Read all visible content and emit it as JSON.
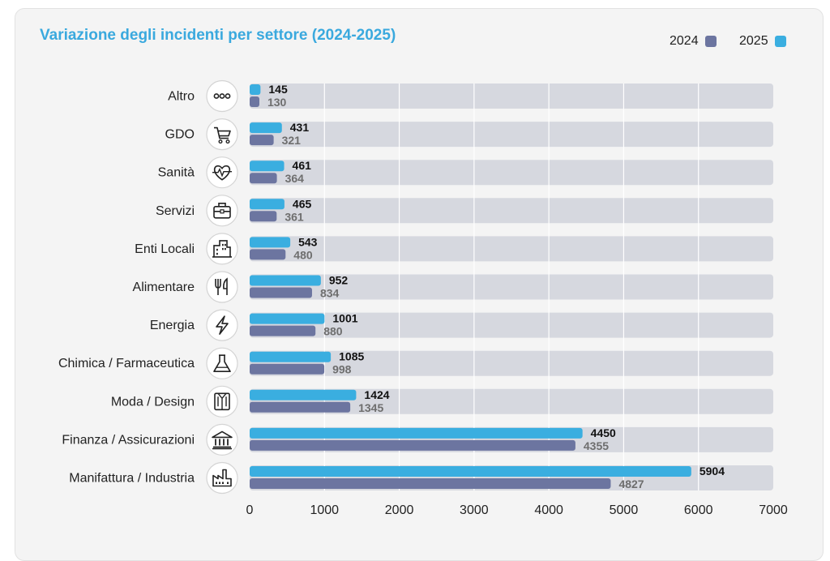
{
  "colors": {
    "y2025": "#3aaee0",
    "y2024": "#6c75a0",
    "track": "#d6d8df",
    "grid": "#ffffff",
    "value2025": "#111111",
    "value2024": "#6e6e6e",
    "title": "#3aa9de"
  },
  "chart_data": {
    "type": "bar",
    "orientation": "horizontal",
    "title": "Variazione degli incidenti per settore (2024-2025)",
    "legend_position": "top-right",
    "categories": [
      {
        "label": "Altro",
        "icon": "more-dots-icon"
      },
      {
        "label": "GDO",
        "icon": "shopping-cart-icon"
      },
      {
        "label": "Sanità",
        "icon": "heart-pulse-icon"
      },
      {
        "label": "Servizi",
        "icon": "briefcase-icon"
      },
      {
        "label": "Enti Locali",
        "icon": "buildings-icon"
      },
      {
        "label": "Alimentare",
        "icon": "fork-knife-icon"
      },
      {
        "label": "Energia",
        "icon": "lightning-icon"
      },
      {
        "label": "Chimica / Farmaceutica",
        "icon": "flask-icon"
      },
      {
        "label": "Moda / Design",
        "icon": "shirt-icon"
      },
      {
        "label": "Finanza / Assicurazioni",
        "icon": "bank-icon"
      },
      {
        "label": "Manifattura / Industria",
        "icon": "factory-icon"
      }
    ],
    "series": [
      {
        "name": "2025",
        "values": [
          145,
          431,
          461,
          465,
          543,
          952,
          1001,
          1085,
          1424,
          4450,
          5904
        ]
      },
      {
        "name": "2024",
        "values": [
          130,
          321,
          364,
          361,
          480,
          834,
          880,
          998,
          1345,
          4355,
          4827
        ]
      }
    ],
    "legend_order": [
      "2024",
      "2025"
    ],
    "xlim": [
      0,
      7000
    ],
    "xticks": [
      "0",
      "1000",
      "2000",
      "3000",
      "4000",
      "5000",
      "6000",
      "7000"
    ],
    "xlabel": "",
    "ylabel": "",
    "grid": true
  }
}
